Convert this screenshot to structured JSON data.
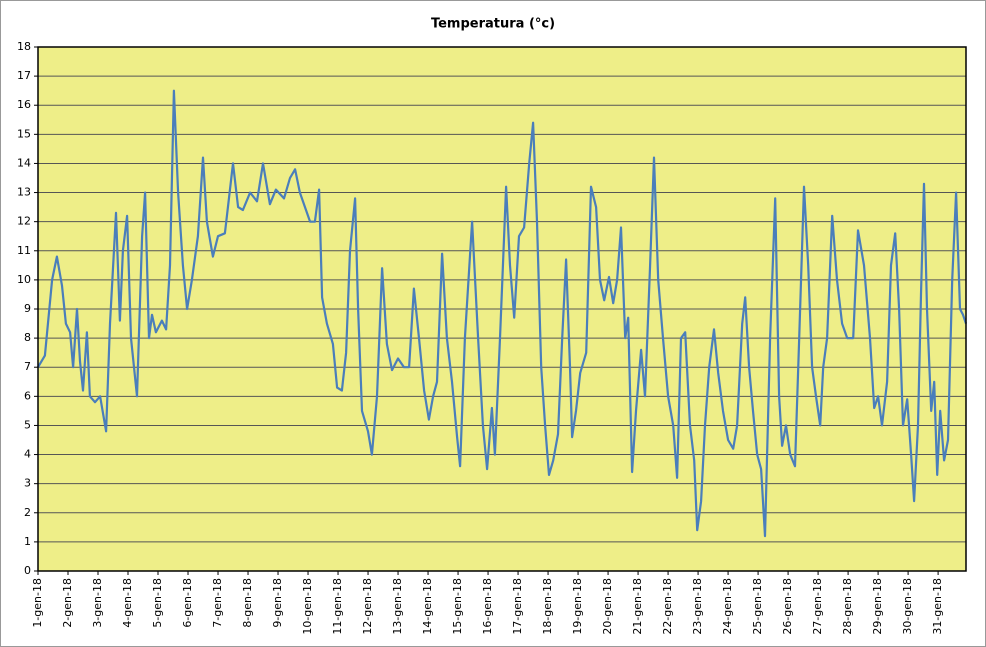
{
  "chart_data": {
    "type": "line",
    "title": "Temperatura (°c)",
    "xlim": [
      0,
      30.93
    ],
    "ylim": [
      0,
      18
    ],
    "yticks": [
      0,
      1,
      2,
      3,
      4,
      5,
      6,
      7,
      8,
      9,
      10,
      11,
      12,
      13,
      14,
      15,
      16,
      17,
      18
    ],
    "xticks": [
      {
        "value": 0,
        "label": "1-gen-18"
      },
      {
        "value": 1,
        "label": "2-gen-18"
      },
      {
        "value": 2,
        "label": "3-gen-18"
      },
      {
        "value": 3,
        "label": "4-gen-18"
      },
      {
        "value": 4,
        "label": "5-gen-18"
      },
      {
        "value": 5,
        "label": "6-gen-18"
      },
      {
        "value": 6,
        "label": "7-gen-18"
      },
      {
        "value": 7,
        "label": "8-gen-18"
      },
      {
        "value": 8,
        "label": "9-gen-18"
      },
      {
        "value": 9,
        "label": "10-gen-18"
      },
      {
        "value": 10,
        "label": "11-gen-18"
      },
      {
        "value": 11,
        "label": "12-gen-18"
      },
      {
        "value": 12,
        "label": "13-gen-18"
      },
      {
        "value": 13,
        "label": "14-gen-18"
      },
      {
        "value": 14,
        "label": "15-gen-18"
      },
      {
        "value": 15,
        "label": "16-gen-18"
      },
      {
        "value": 16,
        "label": "17-gen-18"
      },
      {
        "value": 17,
        "label": "18-gen-18"
      },
      {
        "value": 18,
        "label": "19-gen-18"
      },
      {
        "value": 19,
        "label": "20-gen-18"
      },
      {
        "value": 20,
        "label": "21-gen-18"
      },
      {
        "value": 21,
        "label": "22-gen-18"
      },
      {
        "value": 22,
        "label": "23-gen-18"
      },
      {
        "value": 23,
        "label": "24-gen-18"
      },
      {
        "value": 24,
        "label": "25-gen-18"
      },
      {
        "value": 25,
        "label": "26-gen-18"
      },
      {
        "value": 26,
        "label": "27-gen-18"
      },
      {
        "value": 27,
        "label": "28-gen-18"
      },
      {
        "value": 28,
        "label": "29-gen-18"
      },
      {
        "value": 29,
        "label": "30-gen-18"
      },
      {
        "value": 30,
        "label": "31-gen-18"
      }
    ],
    "grid": true,
    "background": "#eeee88",
    "x": [
      0,
      0.23,
      0.47,
      0.63,
      0.8,
      0.93,
      1.07,
      1.17,
      1.3,
      1.4,
      1.5,
      1.63,
      1.73,
      1.9,
      2.07,
      2.27,
      2.4,
      2.6,
      2.73,
      2.83,
      2.97,
      3.1,
      3.3,
      3.47,
      3.57,
      3.7,
      3.8,
      3.93,
      4.13,
      4.27,
      4.4,
      4.53,
      4.67,
      4.83,
      4.97,
      5.13,
      5.33,
      5.5,
      5.63,
      5.83,
      6,
      6.23,
      6.5,
      6.67,
      6.83,
      7.07,
      7.3,
      7.5,
      7.73,
      7.93,
      8.2,
      8.4,
      8.57,
      8.73,
      9.07,
      9.23,
      9.37,
      9.47,
      9.63,
      9.83,
      9.97,
      10.13,
      10.27,
      10.4,
      10.57,
      10.67,
      10.8,
      11,
      11.13,
      11.3,
      11.47,
      11.63,
      11.8,
      12,
      12.2,
      12.37,
      12.53,
      12.7,
      12.87,
      13.03,
      13.17,
      13.3,
      13.47,
      13.63,
      13.8,
      13.97,
      14.07,
      14.23,
      14.47,
      14.67,
      14.83,
      14.97,
      15.13,
      15.23,
      15.4,
      15.6,
      15.73,
      15.87,
      16.03,
      16.2,
      16.37,
      16.5,
      16.63,
      16.77,
      16.9,
      17.03,
      17.17,
      17.33,
      17.47,
      17.6,
      17.73,
      17.8,
      17.93,
      18.07,
      18.27,
      18.43,
      18.6,
      18.73,
      18.87,
      19.03,
      19.17,
      19.3,
      19.43,
      19.57,
      19.67,
      19.8,
      19.93,
      20.1,
      20.23,
      20.4,
      20.53,
      20.67,
      20.83,
      21,
      21.17,
      21.3,
      21.43,
      21.57,
      21.73,
      21.87,
      21.97,
      22.1,
      22.23,
      22.37,
      22.53,
      22.67,
      22.83,
      23,
      23.17,
      23.3,
      23.47,
      23.57,
      23.7,
      23.83,
      23.97,
      24.1,
      24.23,
      24.4,
      24.57,
      24.7,
      24.8,
      24.93,
      25.07,
      25.23,
      25.37,
      25.53,
      25.67,
      25.8,
      25.93,
      26.07,
      26.17,
      26.3,
      26.47,
      26.63,
      26.8,
      26.97,
      27.17,
      27.33,
      27.53,
      27.73,
      27.87,
      28,
      28.13,
      28.3,
      28.43,
      28.57,
      28.7,
      28.83,
      28.97,
      29.1,
      29.2,
      29.33,
      29.43,
      29.53,
      29.63,
      29.77,
      29.87,
      29.97,
      30.07,
      30.2,
      30.33,
      30.47,
      30.6,
      30.73,
      30.83,
      30.93
    ],
    "series": [
      {
        "name": "Temperatura",
        "color": "#4a7ebb",
        "values": [
          7.0,
          7.4,
          10.0,
          10.8,
          9.8,
          8.5,
          8.2,
          7.0,
          9.0,
          7.2,
          6.2,
          8.2,
          6.0,
          5.8,
          6.0,
          4.8,
          8.5,
          12.3,
          8.6,
          11.0,
          12.2,
          8.0,
          6.0,
          11.5,
          13.0,
          8.0,
          8.8,
          8.2,
          8.6,
          8.3,
          10.5,
          16.5,
          13.0,
          10.5,
          9.0,
          10.0,
          11.5,
          14.2,
          12.0,
          10.8,
          11.5,
          11.6,
          14.0,
          12.5,
          12.4,
          13.0,
          12.7,
          14.0,
          12.6,
          13.1,
          12.8,
          13.5,
          13.8,
          13.0,
          12.0,
          12.0,
          13.1,
          9.4,
          8.5,
          7.8,
          6.3,
          6.2,
          7.5,
          11.0,
          12.8,
          9.0,
          5.5,
          4.8,
          4.0,
          6.0,
          10.4,
          7.8,
          6.9,
          7.3,
          7.0,
          7.0,
          9.7,
          8.0,
          6.2,
          5.2,
          6.0,
          6.5,
          10.9,
          8.0,
          6.5,
          4.6,
          3.6,
          8.0,
          12.0,
          8.0,
          5.0,
          3.5,
          5.6,
          4.0,
          8.0,
          13.2,
          10.5,
          8.7,
          11.5,
          11.8,
          14.0,
          15.4,
          12.0,
          7.0,
          5.0,
          3.3,
          3.8,
          4.7,
          8.0,
          10.7,
          7.0,
          4.6,
          5.5,
          6.8,
          7.5,
          13.2,
          12.5,
          10.0,
          9.3,
          10.1,
          9.2,
          10.0,
          11.8,
          8.0,
          8.7,
          3.4,
          5.5,
          7.6,
          6.0,
          10.5,
          14.2,
          10.0,
          8.0,
          6.0,
          5.0,
          3.2,
          8.0,
          8.2,
          5.0,
          3.8,
          1.4,
          2.4,
          5.0,
          7.0,
          8.3,
          6.8,
          5.5,
          4.5,
          4.2,
          5.0,
          8.5,
          9.4,
          7.0,
          5.5,
          4.0,
          3.5,
          1.2,
          8.0,
          12.8,
          6.0,
          4.3,
          5.0,
          4.0,
          3.6,
          8.0,
          13.2,
          10.5,
          7.0,
          6.0,
          5.0,
          7.0,
          8.0,
          12.2,
          10.0,
          8.5,
          8.0,
          8.0,
          11.7,
          10.5,
          8.0,
          5.6,
          6.0,
          5.0,
          6.5,
          10.5,
          11.6,
          9.0,
          5.0,
          5.9,
          4.0,
          2.4,
          5.0,
          9.5,
          13.3,
          9.0,
          5.5,
          6.5,
          3.3,
          5.5,
          3.8,
          4.5,
          10.0,
          13.0,
          9.0,
          8.8,
          8.5
        ]
      }
    ]
  }
}
